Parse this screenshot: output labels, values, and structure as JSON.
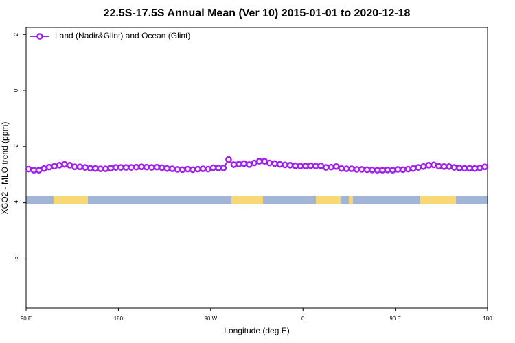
{
  "chart_data": {
    "type": "line",
    "title": "22.5S-17.5S Annual Mean (Ver 10)   2015-01-01 to 2020-12-18",
    "x_label": "Longitude (deg E)",
    "y_label": "XCO2 - MLO trend (ppm)",
    "xlim": [
      90,
      540
    ],
    "ylim": [
      -7.75,
      2.25
    ],
    "xticks": [
      {
        "value": 90,
        "label": "90 E"
      },
      180,
      {
        "value": 270,
        "label": "90 W"
      },
      {
        "value": 360,
        "label": "0"
      },
      {
        "value": 450,
        "label": "90 E"
      },
      {
        "value": 540,
        "label": "180"
      }
    ],
    "yticks": [
      -6,
      -4,
      -2,
      0,
      2
    ],
    "legend": "top-left",
    "x": [
      92.5,
      97.5,
      102.5,
      107.5,
      112.5,
      117.5,
      122.5,
      127.5,
      132.5,
      137.5,
      142.5,
      147.5,
      152.5,
      157.5,
      162.5,
      167.5,
      172.5,
      177.5,
      182.5,
      187.5,
      192.5,
      197.5,
      202.5,
      207.5,
      212.5,
      217.5,
      222.5,
      227.5,
      232.5,
      237.5,
      242.5,
      247.5,
      252.5,
      257.5,
      262.5,
      267.5,
      272.5,
      277.5,
      282.5,
      287.5,
      292.5,
      297.5,
      302.5,
      307.5,
      312.5,
      317.5,
      322.5,
      327.5,
      332.5,
      337.5,
      342.5,
      347.5,
      352.5,
      357.5,
      362.5,
      367.5,
      372.5,
      377.5,
      382.5,
      387.5,
      392.5,
      397.5,
      402.5,
      407.5,
      412.5,
      417.5,
      422.5,
      427.5,
      432.5,
      437.5,
      442.5,
      447.5,
      452.5,
      457.5,
      462.5,
      467.5,
      472.5,
      477.5,
      482.5,
      487.5,
      492.5,
      497.5,
      502.5,
      507.5,
      512.5,
      517.5,
      522.5,
      527.5,
      532.5,
      537.5
    ],
    "series": [
      {
        "name": "Land (Nadir&Glint) and Ocean (Glint)",
        "color": "#a020f0",
        "values": [
          -2.8,
          -2.84,
          -2.84,
          -2.78,
          -2.73,
          -2.7,
          -2.66,
          -2.63,
          -2.66,
          -2.72,
          -2.72,
          -2.74,
          -2.77,
          -2.78,
          -2.79,
          -2.79,
          -2.77,
          -2.74,
          -2.74,
          -2.74,
          -2.74,
          -2.73,
          -2.72,
          -2.73,
          -2.74,
          -2.73,
          -2.75,
          -2.78,
          -2.79,
          -2.81,
          -2.82,
          -2.8,
          -2.82,
          -2.8,
          -2.79,
          -2.8,
          -2.75,
          -2.76,
          -2.76,
          -2.46,
          -2.64,
          -2.62,
          -2.6,
          -2.64,
          -2.58,
          -2.52,
          -2.52,
          -2.58,
          -2.6,
          -2.63,
          -2.65,
          -2.66,
          -2.68,
          -2.69,
          -2.69,
          -2.68,
          -2.69,
          -2.68,
          -2.74,
          -2.73,
          -2.71,
          -2.78,
          -2.79,
          -2.79,
          -2.81,
          -2.81,
          -2.82,
          -2.83,
          -2.84,
          -2.84,
          -2.83,
          -2.84,
          -2.81,
          -2.82,
          -2.8,
          -2.78,
          -2.74,
          -2.71,
          -2.66,
          -2.65,
          -2.7,
          -2.71,
          -2.71,
          -2.74,
          -2.76,
          -2.77,
          -2.77,
          -2.78,
          -2.76,
          -2.72
        ]
      }
    ]
  }
}
